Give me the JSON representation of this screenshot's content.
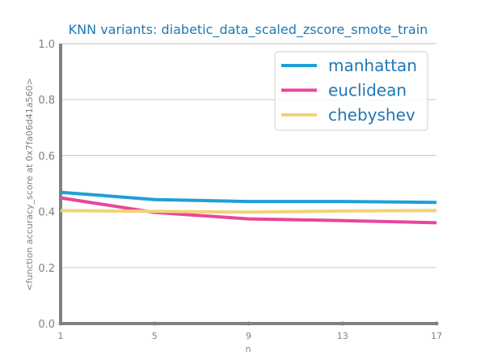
{
  "chart_data": {
    "type": "line",
    "title": "KNN variants: diabetic_data_scaled_zscore_smote_train",
    "xlabel": "n",
    "ylabel": "<function accuracy_score at 0x7fa06d41a560>",
    "x": [
      1,
      5,
      9,
      13,
      17
    ],
    "x_ticks": [
      "1",
      "5",
      "9",
      "13",
      "17"
    ],
    "ylim": [
      0.0,
      1.0
    ],
    "y_ticks": [
      "0.0",
      "0.2",
      "0.4",
      "0.6",
      "0.8",
      "1.0"
    ],
    "grid": "horizontal",
    "legend_position": "top-right",
    "series": [
      {
        "name": "manhattan",
        "color": "#1f9fd8",
        "values": [
          0.469,
          0.443,
          0.436,
          0.436,
          0.433
        ]
      },
      {
        "name": "euclidean",
        "color": "#e8479a",
        "values": [
          0.449,
          0.397,
          0.374,
          0.368,
          0.36
        ]
      },
      {
        "name": "chebyshev",
        "color": "#f0d37a",
        "values": [
          0.404,
          0.401,
          0.398,
          0.402,
          0.404
        ]
      }
    ]
  }
}
